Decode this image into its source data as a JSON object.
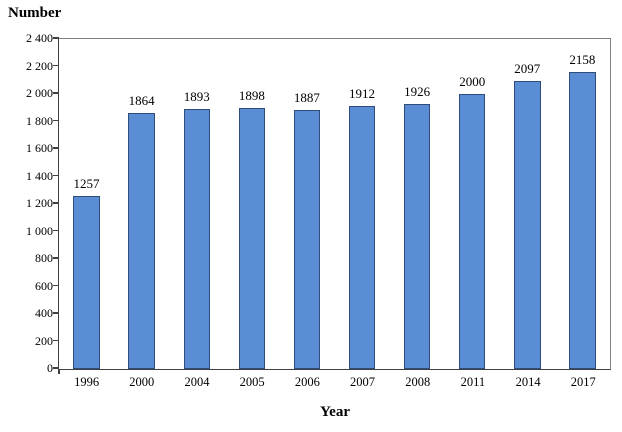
{
  "chart_data": {
    "type": "bar",
    "title": "",
    "ylabel": "Number",
    "xlabel": "Year",
    "categories": [
      "1996",
      "2000",
      "2004",
      "2005",
      "2006",
      "2007",
      "2008",
      "2011",
      "2014",
      "2017"
    ],
    "values": [
      1257,
      1864,
      1893,
      1898,
      1887,
      1912,
      1926,
      2000,
      2097,
      2158
    ],
    "bar_labels": [
      "1257",
      "1864",
      "1893",
      "1898",
      "1887",
      "1912",
      "1926",
      "2000",
      "2097",
      "2158"
    ],
    "ylim": [
      0,
      2400
    ],
    "ytick_step": 200,
    "yticks": [
      {
        "value": 0,
        "label": "0"
      },
      {
        "value": 200,
        "label": "200"
      },
      {
        "value": 400,
        "label": "400"
      },
      {
        "value": 600,
        "label": "600"
      },
      {
        "value": 800,
        "label": "800"
      },
      {
        "value": 1000,
        "label": "1 000"
      },
      {
        "value": 1200,
        "label": "1 200"
      },
      {
        "value": 1400,
        "label": "1 400"
      },
      {
        "value": 1600,
        "label": "1 600"
      },
      {
        "value": 1800,
        "label": "1 800"
      },
      {
        "value": 2000,
        "label": "2 000"
      },
      {
        "value": 2200,
        "label": "2 200"
      },
      {
        "value": 2400,
        "label": "2 400"
      }
    ],
    "grid": false,
    "legend": "none",
    "colors": {
      "bar_fill": "#5B8DD4",
      "bar_border": "#2E4D7B",
      "axis_line": "#404040",
      "box_border": "#808080",
      "text": "#000000",
      "background": "#FFFFFF"
    }
  }
}
